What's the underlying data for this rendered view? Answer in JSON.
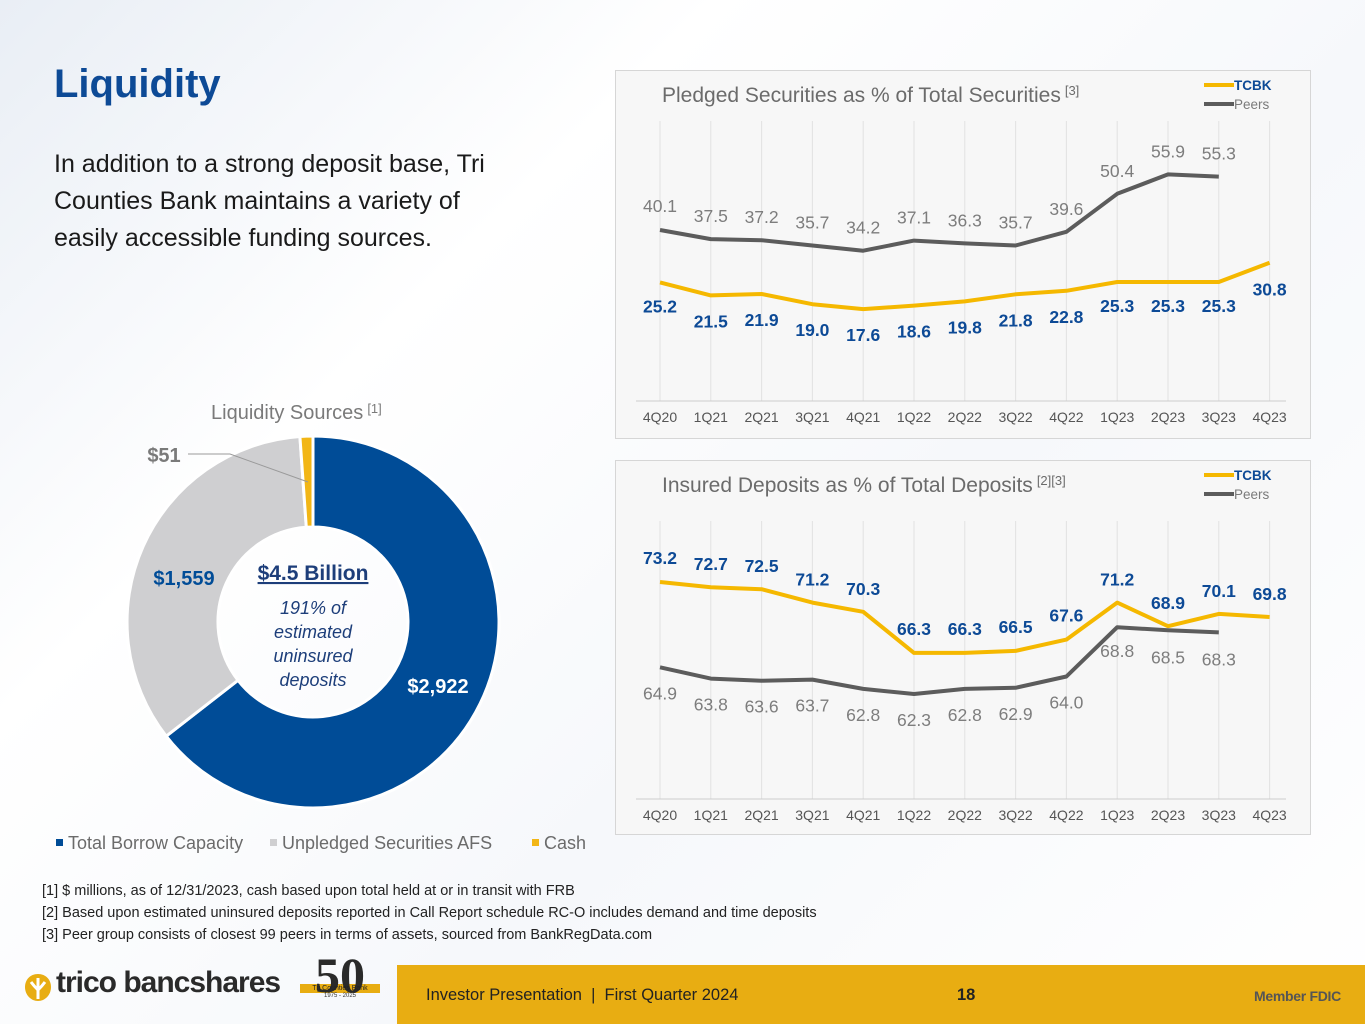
{
  "title": "Liquidity",
  "intro": "In addition to a strong deposit base, Tri Counties Bank maintains a variety of easily accessible funding sources.",
  "colors": {
    "tcbk": "#f5b800",
    "peers": "#5c5c5c",
    "navy": "#0d4a96",
    "borrow": "#004c97",
    "unpledged": "#cfcfd1",
    "cash": "#f2b616"
  },
  "chart_data": [
    {
      "type": "line",
      "title": "Pledged Securities as % of Total Securities",
      "title_note": "[3]",
      "categories": [
        "4Q20",
        "1Q21",
        "2Q21",
        "3Q21",
        "4Q21",
        "1Q22",
        "2Q22",
        "3Q22",
        "4Q22",
        "1Q23",
        "2Q23",
        "3Q23",
        "4Q23"
      ],
      "series": [
        {
          "name": "TCBK",
          "values": [
            25.2,
            21.5,
            21.9,
            19.0,
            17.6,
            18.6,
            19.8,
            21.8,
            22.8,
            25.3,
            25.3,
            25.3,
            30.8
          ]
        },
        {
          "name": "Peers",
          "values": [
            40.1,
            37.5,
            37.2,
            35.7,
            34.2,
            37.1,
            36.3,
            35.7,
            39.6,
            50.4,
            55.9,
            55.3,
            null
          ]
        }
      ],
      "ylim": [
        0,
        62
      ]
    },
    {
      "type": "line",
      "title": "Insured Deposits as % of Total Deposits",
      "title_note": "[2][3]",
      "categories": [
        "4Q20",
        "1Q21",
        "2Q21",
        "3Q21",
        "4Q21",
        "1Q22",
        "2Q22",
        "3Q22",
        "4Q22",
        "1Q23",
        "2Q23",
        "3Q23",
        "4Q23"
      ],
      "series": [
        {
          "name": "TCBK",
          "values": [
            73.2,
            72.7,
            72.5,
            71.2,
            70.3,
            66.3,
            66.3,
            66.5,
            67.6,
            71.2,
            68.9,
            70.1,
            69.8
          ]
        },
        {
          "name": "Peers",
          "values": [
            64.9,
            63.8,
            63.6,
            63.7,
            62.8,
            62.3,
            62.8,
            62.9,
            64.0,
            68.8,
            68.5,
            68.3,
            null
          ]
        }
      ],
      "ylim": [
        55,
        77
      ]
    },
    {
      "type": "pie",
      "title": "Liquidity Sources",
      "title_note": "[1]",
      "categories": [
        "Total Borrow Capacity",
        "Unpledged Securities AFS",
        "Cash"
      ],
      "values": [
        2922,
        1559,
        51
      ],
      "value_labels": [
        "$2,922",
        "$1,559",
        "$51"
      ],
      "center_title": "$4.5 Billion",
      "center_sub": "191% of estimated uninsured deposits"
    }
  ],
  "footnotes": [
    "[1] $ millions, as of 12/31/2023, cash based upon total held at or in transit with FRB",
    "[2] Based upon estimated uninsured deposits reported in Call Report schedule RC-O includes demand and time deposits",
    "[3] Peer group consists of closest 99 peers in terms of assets, sourced from BankRegData.com"
  ],
  "footer": {
    "brand": "trico bancshares",
    "anniversary": "50",
    "anniversary_sub": "Tri Counties Bank",
    "anniversary_years": "1975 - 2025",
    "presentation": "Investor Presentation  |  First Quarter 2024",
    "page": "18",
    "member": "Member FDIC"
  }
}
